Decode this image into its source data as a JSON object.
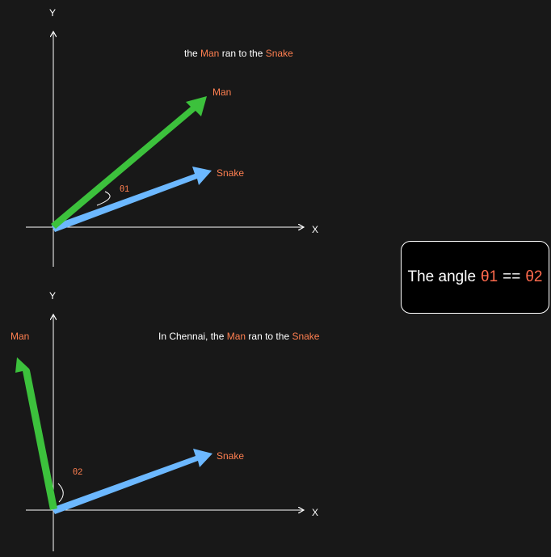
{
  "top_panel": {
    "y_label": "Y",
    "x_label": "X",
    "sentence": {
      "part1": "the ",
      "word1": "Man",
      "part2": " ran to the ",
      "word2": "Snake"
    },
    "man_label": "Man",
    "snake_label": "Snake",
    "angle_label": "θ1"
  },
  "bottom_panel": {
    "y_label": "Y",
    "x_label": "X",
    "sentence": {
      "part1": "In Chennai, the ",
      "word1": "Man",
      "part2": " ran to the ",
      "word2": "Snake"
    },
    "man_label": "Man",
    "snake_label": "Snake",
    "angle_label": "θ2"
  },
  "callout": {
    "prefix": "The angle",
    "theta1": "θ1",
    "op": "==",
    "theta2": "θ2"
  },
  "colors": {
    "background": "#181818",
    "man_vector": "#3cc13c",
    "snake_vector": "#6cb8ff",
    "highlight": "#ff7f50",
    "axis": "#ffffff"
  }
}
